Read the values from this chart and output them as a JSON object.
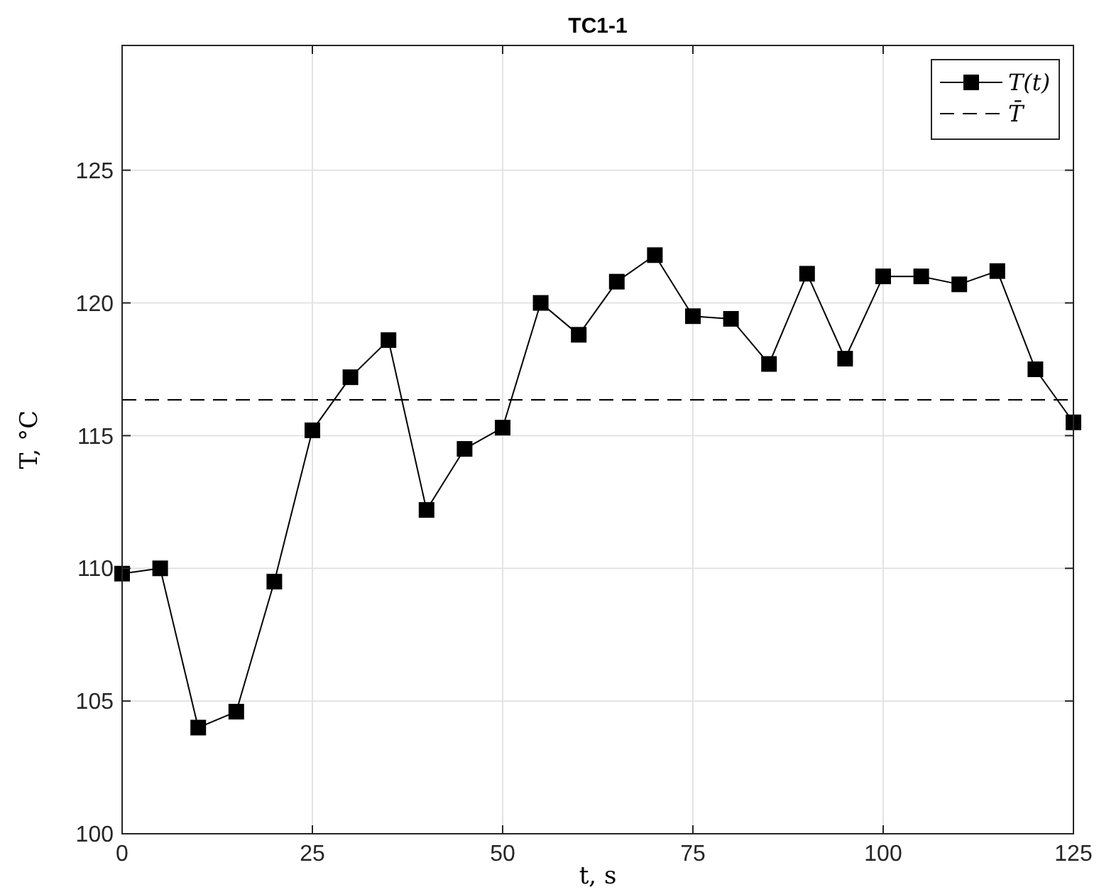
{
  "chart_data": {
    "type": "line",
    "title": "TC1-1",
    "xlabel": "t, s",
    "ylabel": "T, °C",
    "x": [
      0,
      5,
      10,
      15,
      20,
      25,
      30,
      35,
      40,
      45,
      50,
      55,
      60,
      65,
      70,
      75,
      80,
      85,
      90,
      95,
      100,
      105,
      110,
      115,
      120,
      125
    ],
    "series": [
      {
        "name": "T(t)",
        "color": "#000000",
        "values": [
          109.8,
          110.0,
          104.0,
          104.6,
          109.5,
          115.2,
          117.2,
          118.6,
          112.2,
          114.5,
          115.3,
          120.0,
          118.8,
          120.8,
          121.8,
          119.5,
          119.4,
          117.7,
          121.1,
          117.9,
          121.0,
          121.0,
          120.7,
          121.2,
          117.5,
          115.5
        ]
      }
    ],
    "ref_lines": [
      {
        "axis": "y",
        "value": 116.35,
        "label": "T̄",
        "color": "#000000",
        "line_style": "dashed"
      }
    ],
    "xlim": [
      0,
      125
    ],
    "xticks": [
      0,
      25,
      50,
      75,
      100,
      125
    ],
    "ylim": [
      100,
      129.7
    ],
    "yticks": [
      100,
      105,
      110,
      115,
      120,
      125
    ],
    "grid": true,
    "legend": "top right",
    "marker": "square",
    "line_style": "solid"
  }
}
